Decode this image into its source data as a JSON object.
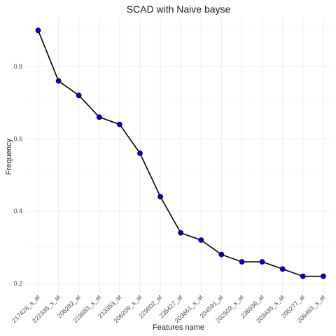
{
  "chart_data": {
    "type": "line",
    "title": "SCAD with Naive bayse",
    "xlabel": "Features name",
    "ylabel": "Frequency",
    "categories": [
      "217428_s_at",
      "222335_x_at",
      "206282_at",
      "218883_s_at",
      "213353_at",
      "206209_s_at",
      "229802_at",
      "235427_at",
      "203661_s_at",
      "204591_at",
      "202503_s_at",
      "236936_at",
      "203435_s_at",
      "205277_at",
      "206463_s_at"
    ],
    "values": [
      0.9,
      0.76,
      0.72,
      0.66,
      0.64,
      0.56,
      0.44,
      0.34,
      0.32,
      0.28,
      0.26,
      0.26,
      0.24,
      0.22,
      0.22
    ],
    "ylim": [
      0.2,
      0.9
    ],
    "yticks": [
      0.2,
      0.4,
      0.6,
      0.8
    ],
    "grid": true,
    "colors": {
      "line": "#000000",
      "point": "#0000CC",
      "grid": "#ebebeb"
    }
  }
}
